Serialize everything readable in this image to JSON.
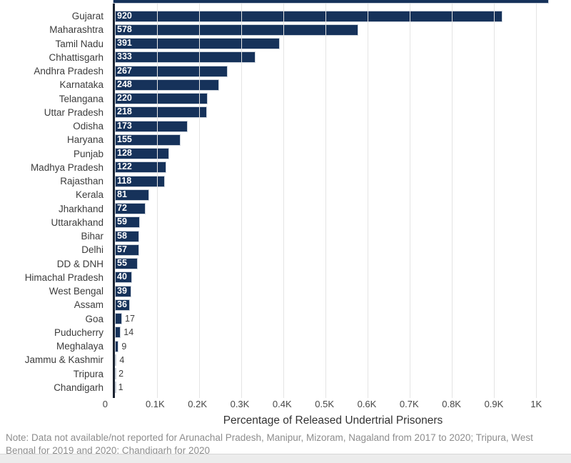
{
  "chart_data": {
    "type": "bar",
    "orientation": "horizontal",
    "title": "",
    "xlabel": "Percentage of Released Undertrial Prisoners",
    "ylabel": "",
    "categories": [
      "Gujarat",
      "Maharashtra",
      "Tamil Nadu",
      "Chhattisgarh",
      "Andhra Pradesh",
      "Karnataka",
      "Telangana",
      "Uttar Pradesh",
      "Odisha",
      "Haryana",
      "Punjab",
      "Madhya Pradesh",
      "Rajasthan",
      "Kerala",
      "Jharkhand",
      "Uttarakhand",
      "Bihar",
      "Delhi",
      "DD & DNH",
      "Himachal Pradesh",
      "West Bengal",
      "Assam",
      "Goa",
      "Puducherry",
      "Meghalaya",
      "Jammu & Kashmir",
      "Tripura",
      "Chandigarh"
    ],
    "values": [
      920,
      578,
      391,
      333,
      267,
      248,
      220,
      218,
      173,
      155,
      128,
      122,
      118,
      81,
      72,
      59,
      58,
      57,
      55,
      40,
      39,
      36,
      17,
      14,
      9,
      4,
      2,
      1
    ],
    "x_ticks": [
      {
        "value": 0,
        "label": "0"
      },
      {
        "value": 100,
        "label": "0.1K"
      },
      {
        "value": 200,
        "label": "0.2K"
      },
      {
        "value": 300,
        "label": "0.3K"
      },
      {
        "value": 400,
        "label": "0.4K"
      },
      {
        "value": 500,
        "label": "0.5K"
      },
      {
        "value": 600,
        "label": "0.6K"
      },
      {
        "value": 700,
        "label": "0.7K"
      },
      {
        "value": 800,
        "label": "0.8K"
      },
      {
        "value": 900,
        "label": "0.9K"
      },
      {
        "value": 1000,
        "label": "1K"
      }
    ],
    "xlim": [
      0,
      1040
    ],
    "grid": true,
    "legend": false,
    "bar_color": "#16325a",
    "inside_label_threshold": 30,
    "value_labels": "start-of-bar",
    "cutoff_bar_at_top": true
  },
  "note": "Note: Data not available/not reported for Arunachal Pradesh, Manipur, Mizoram, Nagaland from 2017 to 2020; Tripura, West Bengal for 2019 and 2020; Chandigarh for 2020",
  "colors": {
    "bar": "#16325a",
    "axis_line": "#1c2431",
    "gridline": "#e4e4e4",
    "category_label": "#3c3c3c",
    "tick_label": "#474747",
    "axis_title": "#333333",
    "note_text": "#8d8d8d",
    "value_inside": "#ffffff",
    "value_outside": "#3f3f3f",
    "bottom_strip": "#ececec"
  }
}
